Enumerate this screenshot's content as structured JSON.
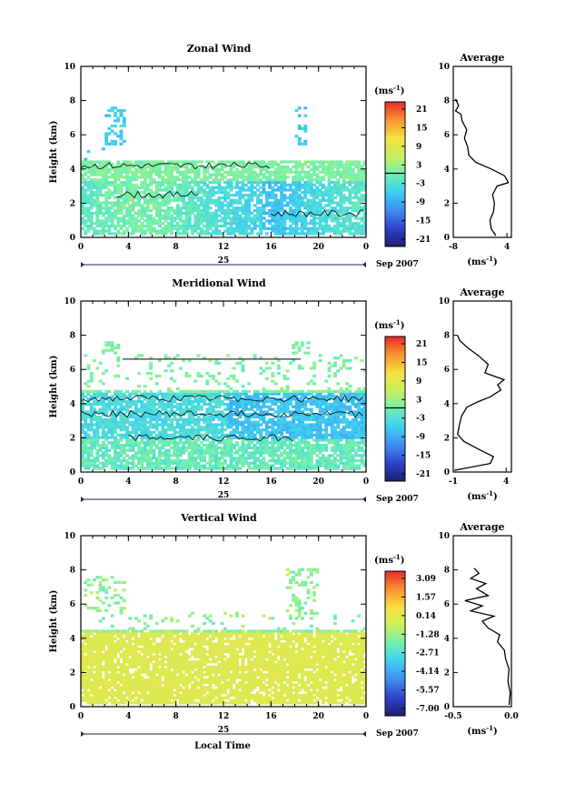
{
  "figure": {
    "shared_xlabel": "Local Time",
    "date_label": "25",
    "month_label": "Sep 2007",
    "height_label": "Height (km)",
    "unit_label": "(ms",
    "unit_exp": "-1",
    "unit_close": ")",
    "average_title": "Average"
  },
  "chart_data": [
    {
      "type": "heatmap",
      "title": "Zonal Wind",
      "xlabel": "Local Time",
      "ylabel": "Height (km)",
      "xlim": [
        0,
        24
      ],
      "ylim": [
        0,
        10
      ],
      "xticks": [
        "0",
        "4",
        "8",
        "12",
        "16",
        "20",
        "0"
      ],
      "yticks": [
        "0",
        "2",
        "4",
        "6",
        "8",
        "10"
      ],
      "colorbar": {
        "unit": "(ms-1)",
        "ticks": [
          "21",
          "15",
          "9",
          "3",
          "-3",
          "-9",
          "-15",
          "-21"
        ],
        "range": [
          -24,
          24
        ]
      },
      "zero_contour": true,
      "profile": {
        "title": "Average",
        "xlim": [
          -8,
          5
        ],
        "xticks": [
          "-8",
          "4"
        ],
        "xlabel": "(ms-1)",
        "ylim": [
          0,
          10
        ],
        "yticks": [
          "0",
          "2",
          "4",
          "6",
          "8",
          "10"
        ],
        "points": [
          [
            1.5,
            0.1
          ],
          [
            0.5,
            0.5
          ],
          [
            0.2,
            1
          ],
          [
            1.0,
            1.5
          ],
          [
            1.2,
            2
          ],
          [
            0.8,
            2.5
          ],
          [
            1.8,
            3
          ],
          [
            4.3,
            3.2
          ],
          [
            3.5,
            3.6
          ],
          [
            0.5,
            4.0
          ],
          [
            -3.0,
            4.4
          ],
          [
            -4.5,
            4.8
          ],
          [
            -4.8,
            5.3
          ],
          [
            -5.5,
            5.8
          ],
          [
            -5.0,
            6.3
          ],
          [
            -6.0,
            6.8
          ],
          [
            -6.3,
            7.2
          ],
          [
            -7.5,
            7.4
          ],
          [
            -6.8,
            7.7
          ],
          [
            -7.5,
            8.1
          ]
        ]
      }
    },
    {
      "type": "heatmap",
      "title": "Meridional Wind",
      "xlabel": "Local Time",
      "ylabel": "Height (km)",
      "xlim": [
        0,
        24
      ],
      "ylim": [
        0,
        10
      ],
      "xticks": [
        "0",
        "4",
        "8",
        "12",
        "16",
        "20",
        "0"
      ],
      "yticks": [
        "0",
        "2",
        "4",
        "6",
        "8",
        "10"
      ],
      "colorbar": {
        "unit": "(ms-1)",
        "ticks": [
          "21",
          "15",
          "9",
          "3",
          "-3",
          "-9",
          "-15",
          "-21"
        ],
        "range": [
          -24,
          24
        ]
      },
      "zero_contour": true,
      "profile": {
        "title": "Average",
        "xlim": [
          -1,
          4.5
        ],
        "xticks": [
          "-1",
          "4"
        ],
        "xlabel": "(ms-1)",
        "ylim": [
          0,
          10
        ],
        "yticks": [
          "0",
          "2",
          "4",
          "6",
          "8",
          "10"
        ],
        "points": [
          [
            -0.9,
            0.1
          ],
          [
            2.5,
            0.5
          ],
          [
            2.8,
            0.9
          ],
          [
            1.5,
            1.3
          ],
          [
            0.0,
            1.8
          ],
          [
            -0.6,
            2.2
          ],
          [
            -0.4,
            2.8
          ],
          [
            -0.2,
            3.3
          ],
          [
            0.3,
            3.8
          ],
          [
            1.3,
            4.1
          ],
          [
            2.5,
            4.4
          ],
          [
            3.5,
            4.8
          ],
          [
            3.2,
            5.1
          ],
          [
            3.8,
            5.4
          ],
          [
            2.0,
            5.8
          ],
          [
            2.3,
            6.3
          ],
          [
            1.4,
            6.8
          ],
          [
            0.3,
            7.3
          ],
          [
            -0.4,
            7.7
          ],
          [
            -0.6,
            8.0
          ]
        ]
      }
    },
    {
      "type": "heatmap",
      "title": "Vertical Wind",
      "xlabel": "Local Time",
      "ylabel": "Height (km)",
      "xlim": [
        0,
        24
      ],
      "ylim": [
        0,
        10
      ],
      "xticks": [
        "0",
        "4",
        "8",
        "12",
        "16",
        "20",
        "0"
      ],
      "yticks": [
        "0",
        "2",
        "4",
        "6",
        "8",
        "10"
      ],
      "colorbar": {
        "unit": "(ms-1)",
        "ticks": [
          "3.09",
          "1.57",
          "0.14",
          "-1.28",
          "-2.71",
          "-4.14",
          "-5.57",
          "-7.00"
        ],
        "range": [
          -7.7,
          3.8
        ]
      },
      "zero_contour": false,
      "profile": {
        "title": "Average",
        "xlim": [
          -0.5,
          0.0
        ],
        "xticks": [
          "-0.5",
          "0.0"
        ],
        "xlabel": "(ms-1)",
        "ylim": [
          0,
          10
        ],
        "yticks": [
          "0",
          "2",
          "4",
          "6",
          "8",
          "10"
        ],
        "points": [
          [
            -0.02,
            0.1
          ],
          [
            -0.01,
            0.8
          ],
          [
            -0.03,
            1.5
          ],
          [
            -0.02,
            2.2
          ],
          [
            -0.05,
            2.8
          ],
          [
            -0.06,
            3.3
          ],
          [
            -0.12,
            3.8
          ],
          [
            -0.1,
            4.2
          ],
          [
            -0.2,
            4.6
          ],
          [
            -0.25,
            5.0
          ],
          [
            -0.15,
            5.3
          ],
          [
            -0.35,
            5.6
          ],
          [
            -0.25,
            5.9
          ],
          [
            -0.4,
            6.2
          ],
          [
            -0.2,
            6.5
          ],
          [
            -0.3,
            6.9
          ],
          [
            -0.22,
            7.2
          ],
          [
            -0.35,
            7.5
          ],
          [
            -0.28,
            7.8
          ],
          [
            -0.32,
            8.1
          ]
        ]
      }
    }
  ]
}
